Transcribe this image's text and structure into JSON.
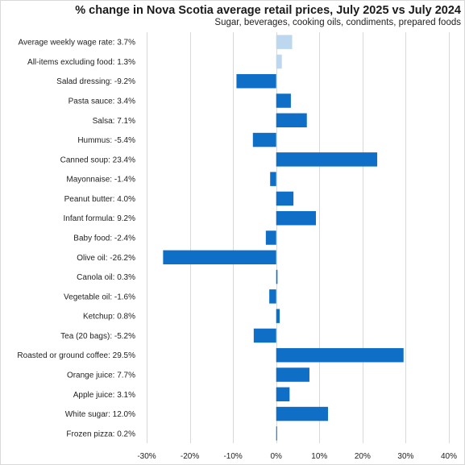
{
  "chart_data": {
    "type": "bar",
    "orientation": "horizontal",
    "title": "% change in Nova Scotia average retail prices, July 2025 vs July 2024",
    "subtitle": "Sugar, beverages,  cooking oils, condiments,  prepared foods",
    "xlim": [
      -30,
      40
    ],
    "x_ticks": [
      -30,
      -20,
      -10,
      0,
      10,
      20,
      30,
      40
    ],
    "x_tick_labels": [
      "-30%",
      "-20%",
      "-10%",
      "0%",
      "10%",
      "20%",
      "30%",
      "40%"
    ],
    "grid": true,
    "categories": [
      "Average weekly wage rate: 3.7%",
      "All-items excluding food: 1.3%",
      "Salad dressing: -9.2%",
      "Pasta sauce: 3.4%",
      "Salsa: 7.1%",
      "Hummus: -5.4%",
      "Canned soup: 23.4%",
      "Mayonnaise: -1.4%",
      "Peanut butter: 4.0%",
      "Infant formula: 9.2%",
      "Baby food: -2.4%",
      "Olive oil: -26.2%",
      "Canola oil: 0.3%",
      "Vegetable oil: -1.6%",
      "Ketchup: 0.8%",
      "Tea (20 bags): -5.2%",
      "Roasted or ground coffee: 29.5%",
      "Orange juice: 7.7%",
      "Apple juice: 3.1%",
      "White sugar: 12.0%",
      "Frozen pizza: 0.2%"
    ],
    "values": [
      3.7,
      1.3,
      -9.2,
      3.4,
      7.1,
      -5.4,
      23.4,
      -1.4,
      4.0,
      9.2,
      -2.4,
      -26.2,
      0.3,
      -1.6,
      0.8,
      -5.2,
      29.5,
      7.7,
      3.1,
      12.0,
      0.2
    ],
    "colors": {
      "highlight": "#bdd7ee",
      "primary": "#0f6fc6"
    },
    "highlighted_categories": [
      0,
      1
    ]
  }
}
